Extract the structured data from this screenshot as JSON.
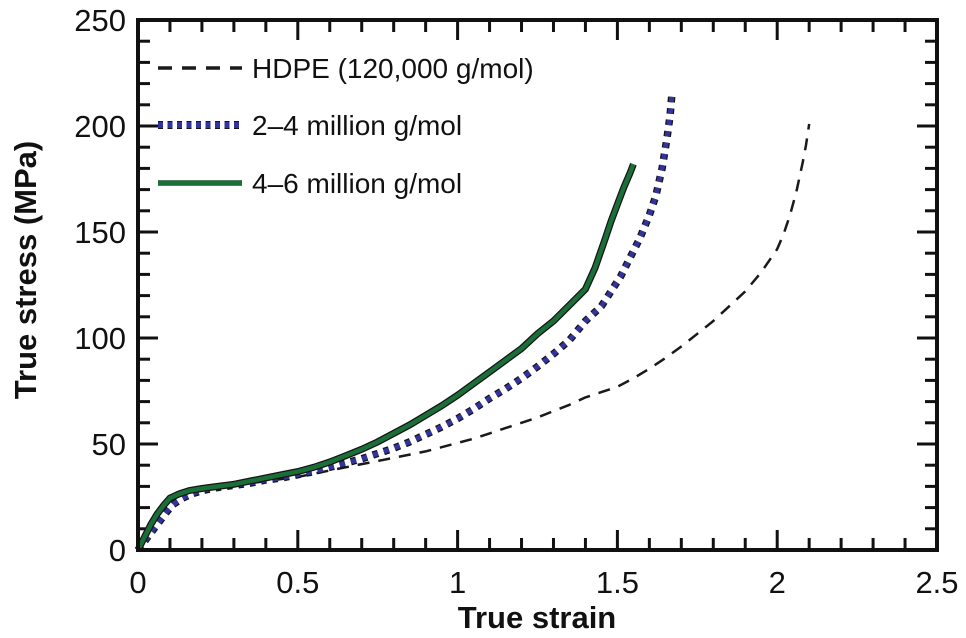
{
  "chart_data": {
    "type": "line",
    "title": "",
    "xlabel": "True strain",
    "ylabel": "True stress (MPa)",
    "xlim": [
      0,
      2.5
    ],
    "ylim": [
      0,
      250
    ],
    "x_major_ticks": [
      0,
      0.5,
      1,
      1.5,
      2,
      2.5
    ],
    "x_tick_labels": [
      "0",
      "0.5",
      "1",
      "1.5",
      "2",
      "2.5"
    ],
    "x_minor_step": 0.1,
    "y_major_ticks": [
      0,
      50,
      100,
      150,
      200,
      250
    ],
    "y_tick_labels": [
      "0",
      "50",
      "100",
      "150",
      "200",
      "250"
    ],
    "y_minor_step": 10,
    "grid": false,
    "legend_position": "top-left",
    "axis_color": "#111111",
    "series": [
      {
        "name": "HDPE (120,000 g/mol)",
        "color": "#1a1a1a",
        "label_color": "#111111",
        "style": "dashed",
        "width": 2.5,
        "outlined": false,
        "points": [
          [
            0,
            0
          ],
          [
            0.02,
            6
          ],
          [
            0.04,
            12
          ],
          [
            0.06,
            17
          ],
          [
            0.08,
            21
          ],
          [
            0.1,
            24
          ],
          [
            0.13,
            26.5
          ],
          [
            0.16,
            27.5
          ],
          [
            0.2,
            28.5
          ],
          [
            0.25,
            29.5
          ],
          [
            0.3,
            30.5
          ],
          [
            0.35,
            31.5
          ],
          [
            0.4,
            32.5
          ],
          [
            0.45,
            33.5
          ],
          [
            0.5,
            34.5
          ],
          [
            0.55,
            36
          ],
          [
            0.6,
            37.5
          ],
          [
            0.65,
            39
          ],
          [
            0.7,
            40.5
          ],
          [
            0.75,
            42
          ],
          [
            0.8,
            43.5
          ],
          [
            0.85,
            45
          ],
          [
            0.9,
            46.5
          ],
          [
            0.95,
            48.5
          ],
          [
            1,
            50.5
          ],
          [
            1.05,
            52.5
          ],
          [
            1.1,
            55
          ],
          [
            1.15,
            57.5
          ],
          [
            1.2,
            60
          ],
          [
            1.25,
            62.5
          ],
          [
            1.3,
            65.5
          ],
          [
            1.35,
            68.5
          ],
          [
            1.4,
            72
          ],
          [
            1.45,
            74.5
          ],
          [
            1.5,
            77
          ],
          [
            1.55,
            81
          ],
          [
            1.6,
            85.5
          ],
          [
            1.65,
            90.5
          ],
          [
            1.7,
            96
          ],
          [
            1.75,
            102
          ],
          [
            1.8,
            108
          ],
          [
            1.85,
            115
          ],
          [
            1.9,
            122
          ],
          [
            1.95,
            131
          ],
          [
            2,
            142
          ],
          [
            2.02,
            149
          ],
          [
            2.04,
            158
          ],
          [
            2.06,
            169
          ],
          [
            2.08,
            183
          ],
          [
            2.09,
            191
          ],
          [
            2.1,
            201
          ]
        ]
      },
      {
        "name": "2–4 million g/mol",
        "color": "#32339b",
        "label_color": "#32339b",
        "style": "dotted",
        "width": 5,
        "outlined": true,
        "points": [
          [
            0,
            0
          ],
          [
            0.03,
            6
          ],
          [
            0.05,
            10
          ],
          [
            0.07,
            14
          ],
          [
            0.09,
            18
          ],
          [
            0.11,
            21.5
          ],
          [
            0.14,
            24.5
          ],
          [
            0.17,
            26.5
          ],
          [
            0.2,
            28
          ],
          [
            0.25,
            29.5
          ],
          [
            0.3,
            30.5
          ],
          [
            0.35,
            31.5
          ],
          [
            0.4,
            33
          ],
          [
            0.45,
            34
          ],
          [
            0.5,
            35.5
          ],
          [
            0.55,
            37
          ],
          [
            0.6,
            39
          ],
          [
            0.65,
            41
          ],
          [
            0.7,
            43
          ],
          [
            0.75,
            45.5
          ],
          [
            0.8,
            48
          ],
          [
            0.85,
            51
          ],
          [
            0.9,
            54.5
          ],
          [
            0.95,
            58
          ],
          [
            1,
            62
          ],
          [
            1.05,
            66.5
          ],
          [
            1.1,
            71.5
          ],
          [
            1.15,
            76
          ],
          [
            1.2,
            81
          ],
          [
            1.25,
            86.5
          ],
          [
            1.3,
            92.5
          ],
          [
            1.35,
            99
          ],
          [
            1.4,
            108
          ],
          [
            1.45,
            115
          ],
          [
            1.48,
            122
          ],
          [
            1.51,
            129
          ],
          [
            1.54,
            138
          ],
          [
            1.57,
            147
          ],
          [
            1.6,
            158
          ],
          [
            1.62,
            167
          ],
          [
            1.64,
            180
          ],
          [
            1.655,
            194
          ],
          [
            1.665,
            205
          ],
          [
            1.67,
            214
          ]
        ]
      },
      {
        "name": "4–6 million g/mol",
        "color": "#1a6e38",
        "label_color": "#1a6e38",
        "style": "solid",
        "width": 4.5,
        "outlined": true,
        "points": [
          [
            0,
            0
          ],
          [
            0.02,
            6
          ],
          [
            0.04,
            12
          ],
          [
            0.06,
            17
          ],
          [
            0.08,
            21
          ],
          [
            0.1,
            24.5
          ],
          [
            0.13,
            26.5
          ],
          [
            0.16,
            28
          ],
          [
            0.2,
            29
          ],
          [
            0.25,
            30
          ],
          [
            0.3,
            31
          ],
          [
            0.35,
            32.5
          ],
          [
            0.4,
            34
          ],
          [
            0.45,
            35.5
          ],
          [
            0.5,
            37
          ],
          [
            0.55,
            39
          ],
          [
            0.6,
            41.5
          ],
          [
            0.65,
            44.5
          ],
          [
            0.7,
            47.5
          ],
          [
            0.75,
            51
          ],
          [
            0.8,
            55
          ],
          [
            0.85,
            59
          ],
          [
            0.9,
            63.5
          ],
          [
            0.95,
            68
          ],
          [
            1,
            73
          ],
          [
            1.05,
            78.5
          ],
          [
            1.1,
            84
          ],
          [
            1.15,
            89.5
          ],
          [
            1.2,
            95
          ],
          [
            1.25,
            102
          ],
          [
            1.3,
            108
          ],
          [
            1.35,
            115.5
          ],
          [
            1.4,
            123
          ],
          [
            1.43,
            133
          ],
          [
            1.46,
            146
          ],
          [
            1.48,
            155
          ],
          [
            1.5,
            163
          ],
          [
            1.52,
            171
          ],
          [
            1.54,
            178
          ],
          [
            1.55,
            182
          ]
        ]
      }
    ]
  }
}
